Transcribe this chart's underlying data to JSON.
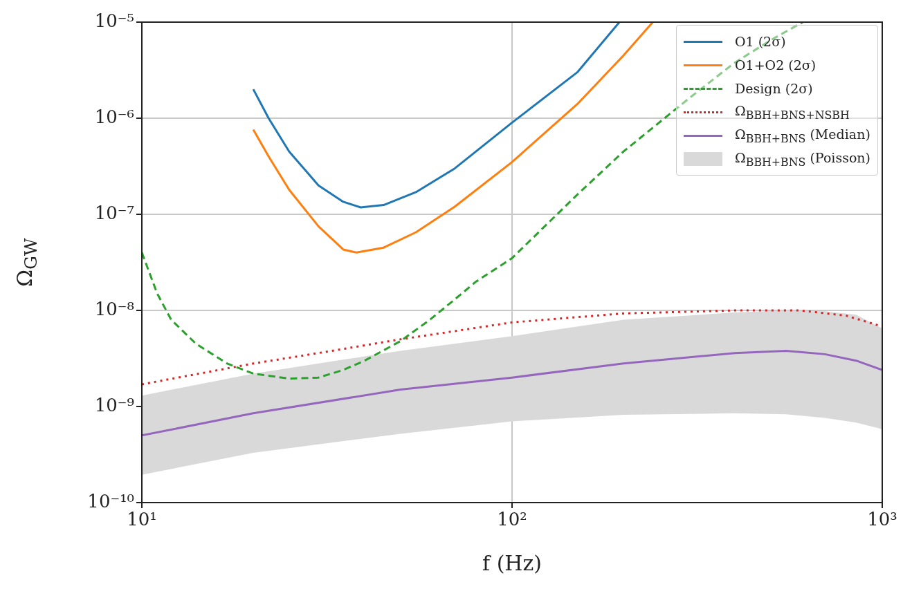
{
  "chart_data": {
    "type": "line",
    "xlabel": "f (Hz)",
    "ylabel": "Ω$_{GW}$",
    "log": "xy",
    "grid": true,
    "legend": "top right",
    "annotations": [
      "Ω$_{BBH+BNS}$ (Poisson)"
    ],
    "xlim": [
      10,
      1000
    ],
    "xticks": [
      {
        "value": 10,
        "label": "10¹"
      },
      {
        "value": 100,
        "label": "10²"
      },
      {
        "value": 1000,
        "label": "10³"
      }
    ],
    "ylim": [
      1e-10,
      1e-05
    ],
    "yticks": [
      {
        "value": 1e-10,
        "label": "10⁻¹⁰"
      },
      {
        "value": 1e-09,
        "label": "10⁻⁹"
      },
      {
        "value": 1e-08,
        "label": "10⁻⁸"
      },
      {
        "value": 1e-07,
        "label": "10⁻⁷"
      },
      {
        "value": 1e-06,
        "label": "10⁻⁶"
      },
      {
        "value": 1e-05,
        "label": "10⁻⁵"
      }
    ],
    "series": [
      {
        "name": "O1 (2σ)",
        "color": "#1f77b4",
        "line_style": "solid",
        "x": [
          20,
          22,
          25,
          30,
          35,
          39,
          45,
          55,
          70,
          100,
          150,
          195
        ],
        "values": [
          2e-06,
          1e-06,
          4.5e-07,
          2e-07,
          1.35e-07,
          1.18e-07,
          1.25e-07,
          1.7e-07,
          3e-07,
          9e-07,
          3e-06,
          1e-05
        ]
      },
      {
        "name": "O1+O2 (2σ)",
        "color": "#ff7f0e",
        "line_style": "solid",
        "x": [
          20,
          22,
          25,
          30,
          35,
          38,
          45,
          55,
          70,
          100,
          150,
          200,
          240
        ],
        "values": [
          7.6e-07,
          4e-07,
          1.8e-07,
          7.5e-08,
          4.3e-08,
          4e-08,
          4.5e-08,
          6.5e-08,
          1.2e-07,
          3.5e-07,
          1.4e-06,
          4.5e-06,
          1e-05
        ]
      },
      {
        "name": "Design (2σ)",
        "color": "#2ca02c",
        "line_style": "dashed",
        "x": [
          10,
          11,
          12,
          14,
          17,
          20,
          25,
          30,
          35,
          40,
          50,
          60,
          70,
          80,
          100,
          150,
          200,
          300,
          400,
          500,
          610
        ],
        "values": [
          4e-08,
          1.5e-08,
          8e-09,
          4.5e-09,
          2.8e-09,
          2.2e-09,
          1.95e-09,
          2e-09,
          2.4e-09,
          3e-09,
          4.8e-09,
          8e-09,
          1.3e-08,
          2e-08,
          3.5e-08,
          1.6e-07,
          4.5e-07,
          1.6e-06,
          3.8e-06,
          6.5e-06,
          1e-05
        ]
      },
      {
        "name": "Ω$_{BBH+BNS+NSBH}$",
        "color": "#d62728",
        "line_style": "dotted",
        "x": [
          10,
          20,
          30,
          50,
          100,
          200,
          400,
          600,
          800,
          1000
        ],
        "values": [
          1.7e-09,
          2.8e-09,
          3.6e-09,
          5e-09,
          7.5e-09,
          9.3e-09,
          1e-08,
          1e-08,
          8.8e-09,
          6.8e-09
        ]
      },
      {
        "name": "Ω$_{BBH+BNS}$ (Median)",
        "color": "#9467bd",
        "line_style": "solid",
        "x": [
          10,
          20,
          50,
          100,
          200,
          400,
          550,
          700,
          850,
          1000
        ],
        "values": [
          5e-10,
          8.5e-10,
          1.5e-09,
          2e-09,
          2.8e-09,
          3.6e-09,
          3.8e-09,
          3.5e-09,
          3e-09,
          2.4e-09
        ],
        "lower": [
          1.95e-10,
          3.3e-10,
          5.2e-10,
          7e-10,
          8.2e-10,
          8.5e-10,
          8.3e-10,
          7.6e-10,
          6.8e-10,
          5.8e-10
        ],
        "upper": [
          1.3e-09,
          2.2e-09,
          3.8e-09,
          5.4e-09,
          8e-09,
          9.5e-09,
          1e-08,
          9.8e-09,
          9e-09,
          6.5e-09
        ]
      }
    ]
  }
}
